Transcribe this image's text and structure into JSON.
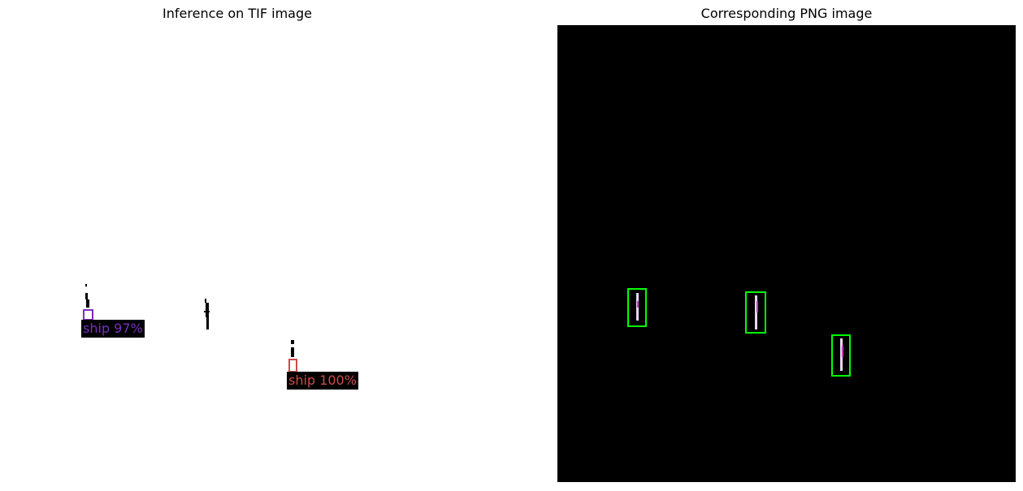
{
  "left": {
    "title": "Inference on TIF image",
    "detections": [
      {
        "label": "ship 97%",
        "color": "#7a2fbf"
      },
      {
        "label": "ship 100%",
        "color": "#d04a4a"
      }
    ]
  },
  "right": {
    "title": "Corresponding PNG image",
    "box_color": "#00ff00",
    "box_count": 3
  }
}
